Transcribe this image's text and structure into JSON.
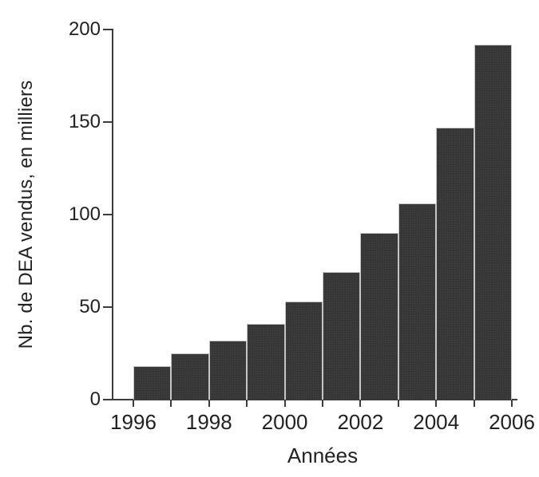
{
  "figure": {
    "background": "#ffffff",
    "text_color": "#222222",
    "axis_color": "#3c3c3c"
  },
  "chart_data": {
    "type": "bar",
    "title": "",
    "xlabel": "Années",
    "ylabel": "Nb. de DEA vendus, en milliers",
    "bar_start_years": [
      1996,
      1997,
      1998,
      1999,
      2000,
      2001,
      2002,
      2003,
      2004,
      2005
    ],
    "values": [
      18,
      25,
      32,
      41,
      53,
      69,
      90,
      106,
      147,
      192
    ],
    "ylim": [
      0,
      200
    ],
    "yticks": [
      0,
      50,
      100,
      150,
      200
    ],
    "xticks": [
      1996,
      1997,
      1998,
      1999,
      2000,
      2001,
      2002,
      2003,
      2004,
      2005,
      2006
    ],
    "xtick_labels": [
      "1996",
      "1998",
      "2000",
      "2002",
      "2004",
      "2006"
    ],
    "grid": "off",
    "legend": "none",
    "bar_color": "#373737",
    "bar_border_color": "#c6c6c6"
  }
}
